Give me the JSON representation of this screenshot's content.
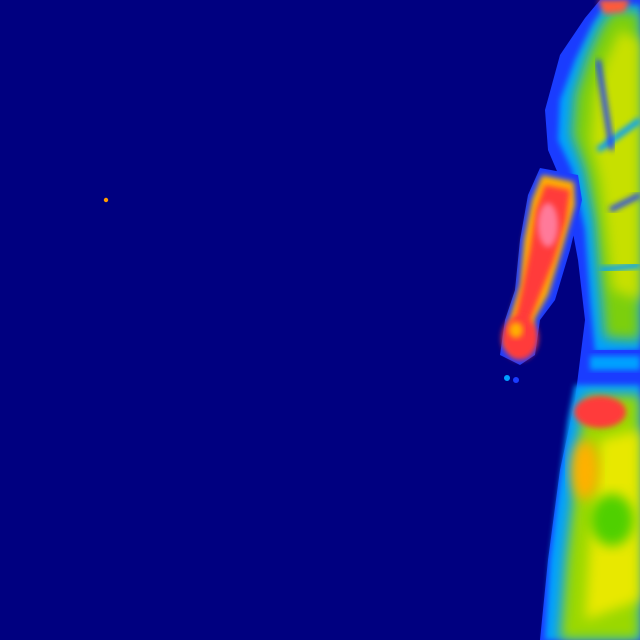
{
  "image": {
    "kind": "thermal-camera-frame",
    "palette": [
      "#000080",
      "#1a3cff",
      "#00a0ff",
      "#4fd000",
      "#9ad800",
      "#e8e800",
      "#ffb000",
      "#ff3a3a",
      "#ff6a6a",
      "#ffffff"
    ]
  },
  "scene": {
    "subject": "person-partial-right-edge",
    "background_color": "#000080",
    "hot_spot_color": "#ff9a00"
  }
}
